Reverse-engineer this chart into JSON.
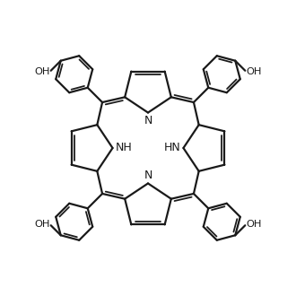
{
  "line_color": "#1a1a1a",
  "line_width": 1.6,
  "bg_color": "#ffffff",
  "xlim": [
    -5.2,
    5.2
  ],
  "ylim": [
    -5.2,
    5.2
  ],
  "figsize": [
    3.3,
    3.3
  ],
  "dpi": 100
}
